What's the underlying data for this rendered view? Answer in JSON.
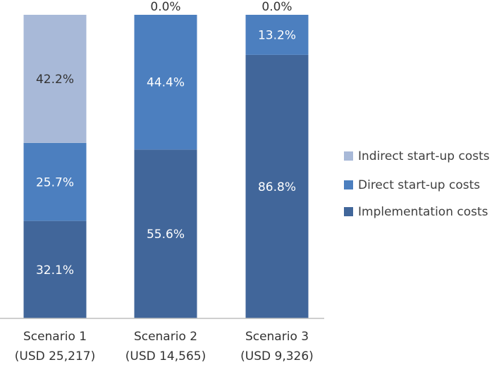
{
  "chart_data": {
    "type": "bar",
    "stacked": true,
    "categories": [
      "Scenario 1",
      "Scenario 2",
      "Scenario 3"
    ],
    "category_sublabels": [
      "(USD 25,217)",
      "(USD 14,565)",
      "(USD 9,326)"
    ],
    "series": [
      {
        "name": "Implementation costs",
        "values": [
          32.1,
          55.6,
          86.8
        ],
        "labels": [
          "32.1%",
          "55.6%",
          "86.8%"
        ],
        "color": "#41669a",
        "label_color": "#ffffff"
      },
      {
        "name": "Direct start-up costs",
        "values": [
          25.7,
          44.4,
          13.2
        ],
        "labels": [
          "25.7%",
          "44.4%",
          "13.2%"
        ],
        "color": "#4c7fbf",
        "label_color": "#ffffff"
      },
      {
        "name": "Indirect start-up costs",
        "values": [
          42.2,
          0.0,
          0.0
        ],
        "labels": [
          "42.2%",
          "0.0%",
          "0.0%"
        ],
        "color": "#a8b9d8",
        "label_color": "#333333"
      }
    ],
    "ylim": [
      0,
      100
    ],
    "grid": false,
    "legend_position": "right",
    "legend_order": [
      "Indirect start-up costs",
      "Direct start-up costs",
      "Implementation costs"
    ]
  }
}
